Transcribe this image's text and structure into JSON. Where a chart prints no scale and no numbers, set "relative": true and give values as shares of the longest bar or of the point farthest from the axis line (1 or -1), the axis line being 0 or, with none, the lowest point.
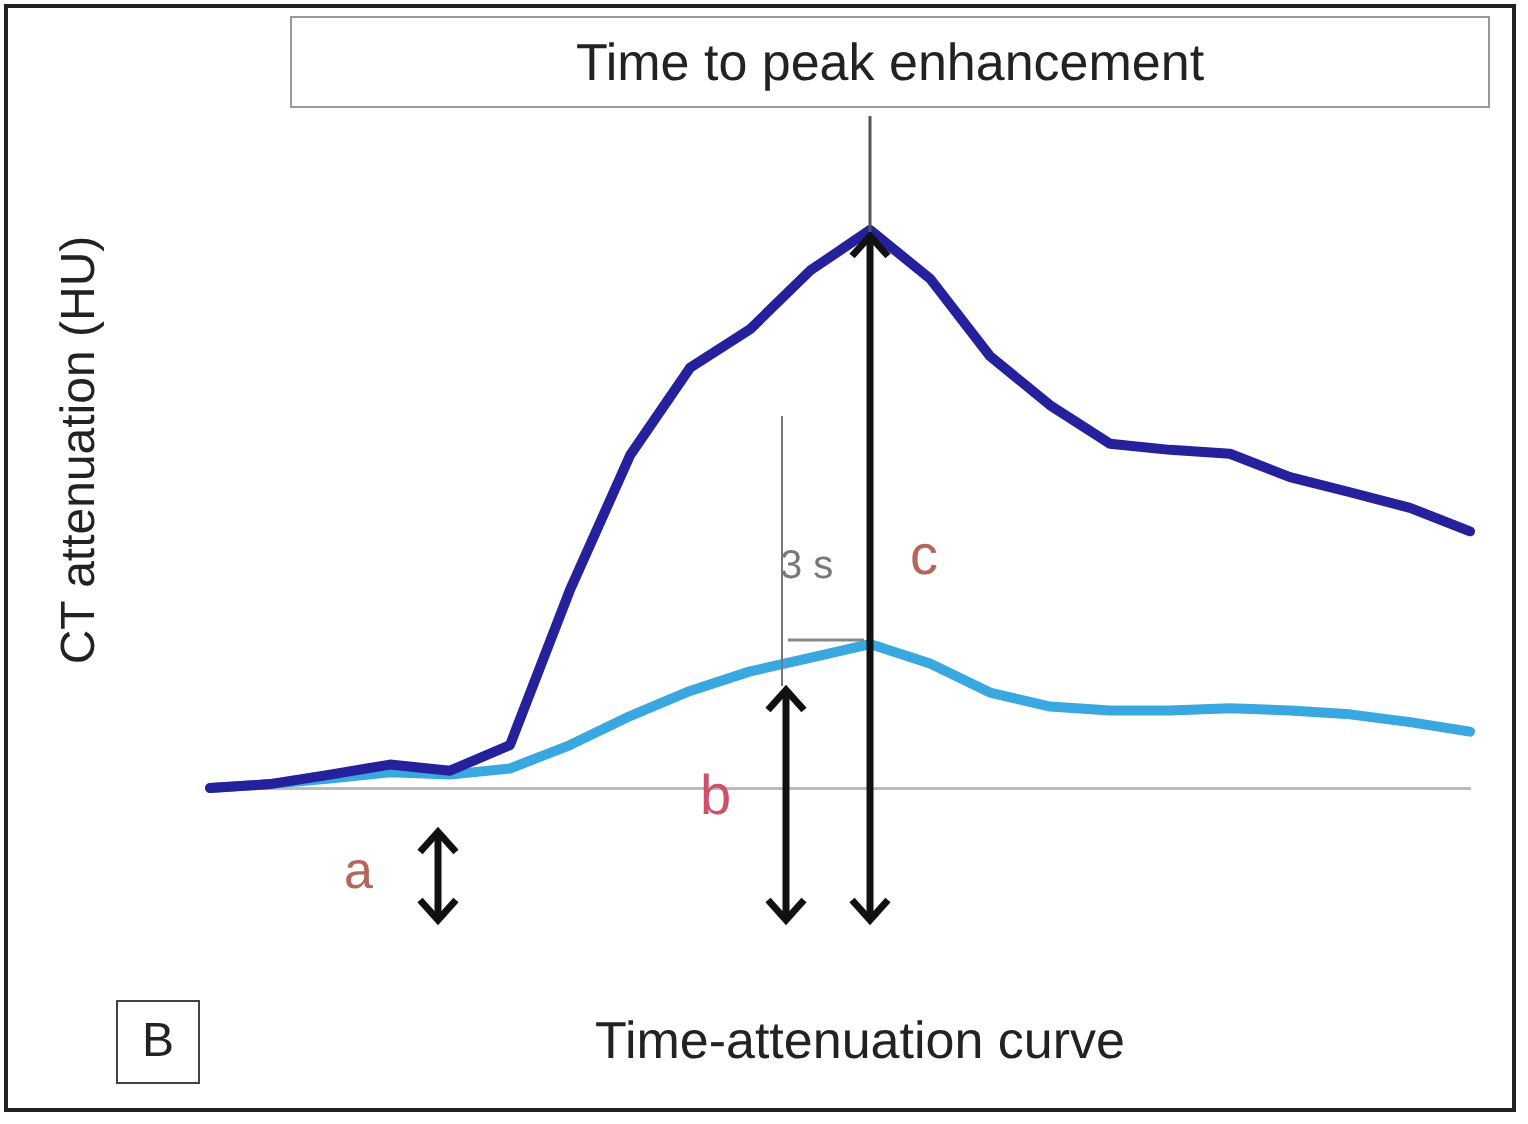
{
  "chart_data": {
    "type": "line",
    "title": "Time to peak enhancement",
    "xlabel": "Time-attenuation curve",
    "ylabel": "CT attenuation (HU)",
    "relative": true,
    "grid": false,
    "legend": false,
    "marker": "none",
    "line_style": "solid",
    "categories": [
      null,
      null,
      null,
      null,
      null,
      null,
      null,
      null,
      null,
      null,
      null,
      null,
      null,
      null,
      null,
      null,
      null,
      null,
      null,
      null,
      null,
      null
    ],
    "series": [
      {
        "color": "#25219c",
        "values": [
          0,
          0.007,
          0.024,
          0.042,
          0.031,
          0.077,
          0.355,
          0.596,
          0.753,
          0.822,
          0.927,
          1,
          0.913,
          0.774,
          0.686,
          0.617,
          0.606,
          0.599,
          0.557,
          0.53,
          0.502,
          0.46
        ]
      },
      {
        "color": "#3aa8e0",
        "values": [
          0,
          0.007,
          0.017,
          0.028,
          0.024,
          0.035,
          0.077,
          0.129,
          0.174,
          0.209,
          0.233,
          0.258,
          0.223,
          0.171,
          0.146,
          0.139,
          0.139,
          0.143,
          0.139,
          0.132,
          0.118,
          0.101
        ]
      }
    ],
    "annotations": [
      "a",
      "b",
      "c",
      "3 s",
      "B"
    ]
  }
}
